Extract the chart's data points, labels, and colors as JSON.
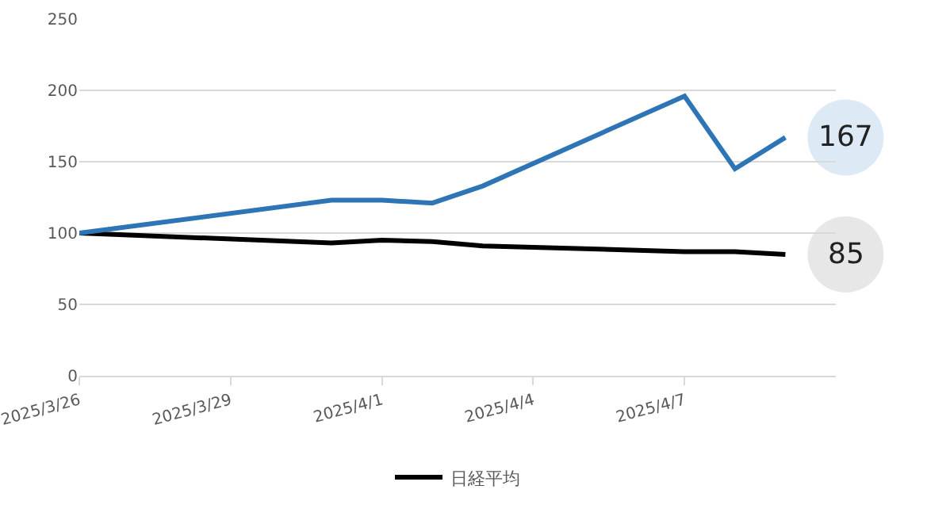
{
  "chart_data": {
    "type": "line",
    "x": [
      "2025-03-26",
      "2025-03-31",
      "2025-04-01",
      "2025-04-02",
      "2025-04-03",
      "2025-04-07",
      "2025-04-08",
      "2025-04-09"
    ],
    "series": [
      {
        "name": "日経平均",
        "color": "#000000",
        "values": [
          100,
          93,
          95,
          94,
          91,
          87,
          87,
          85
        ],
        "value_labels": [
          null,
          null,
          null,
          null,
          null,
          null,
          null,
          "85"
        ]
      },
      {
        "color": "#2e75b6",
        "values": [
          100,
          123,
          123,
          121,
          133,
          196,
          145,
          167
        ],
        "value_labels": [
          null,
          null,
          null,
          null,
          null,
          null,
          null,
          "167"
        ]
      }
    ],
    "xlim": [
      "2025-03-26",
      "2025-04-10"
    ],
    "xticks": [
      {
        "value": "2025-03-26",
        "label": "2025/3/26"
      },
      {
        "value": "2025-03-29",
        "label": "2025/3/29"
      },
      {
        "value": "2025-04-01",
        "label": "2025/4/1"
      },
      {
        "value": "2025-04-04",
        "label": "2025/4/4"
      },
      {
        "value": "2025-04-07",
        "label": "2025/4/7"
      }
    ],
    "ylim": [
      0,
      250
    ],
    "yticks": [
      0,
      50,
      100,
      150,
      200,
      250
    ],
    "grid": "y",
    "legend": "bottom",
    "marker": "none",
    "line_style": "solid"
  }
}
